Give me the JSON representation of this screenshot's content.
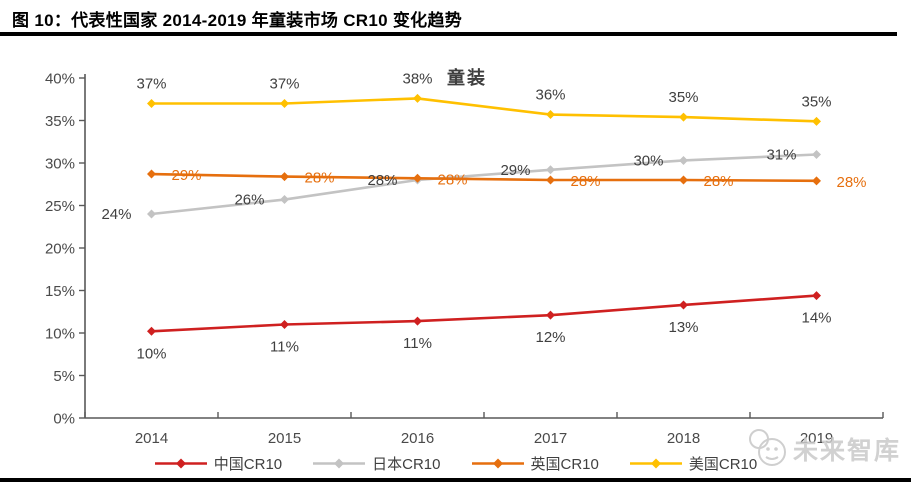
{
  "figure": {
    "title": "图 10：代表性国家 2014-2019 年童装市场 CR10 变化趋势"
  },
  "chart": {
    "inner_title": "童装"
  },
  "watermark": {
    "text": "未来智库"
  },
  "colors": {
    "china_red": "#CF2020",
    "japan_gray": "#C3C3C3",
    "uk_orange": "#E66F0E",
    "us_yellow": "#FFC000",
    "axis": "#595959",
    "tick_label": "#4a4a4a",
    "data_label": "#404040"
  },
  "chart_data": {
    "type": "line",
    "title": "童装",
    "xlabel": "",
    "ylabel": "",
    "x": [
      "2014",
      "2015",
      "2016",
      "2017",
      "2018",
      "2019"
    ],
    "ylim": [
      0,
      40
    ],
    "ytick_step": 5,
    "yticks": [
      "0%",
      "5%",
      "10%",
      "15%",
      "20%",
      "25%",
      "30%",
      "35%",
      "40%"
    ],
    "grid": false,
    "legend_position": "bottom",
    "series": [
      {
        "name": "中国CR10",
        "color": "#CF2020",
        "label_color": "#404040",
        "label_position": "below",
        "values": [
          10.2,
          11.0,
          11.4,
          12.1,
          13.3,
          14.4
        ],
        "labels": [
          "10%",
          "11%",
          "11%",
          "12%",
          "13%",
          "14%"
        ]
      },
      {
        "name": "日本CR10",
        "color": "#C3C3C3",
        "label_color": "#404040",
        "label_position": "left",
        "values": [
          24.0,
          25.7,
          28.0,
          29.2,
          30.3,
          31.0
        ],
        "labels": [
          "24%",
          "26%",
          "28%",
          "29%",
          "30%",
          "31%"
        ]
      },
      {
        "name": "英国CR10",
        "color": "#E66F0E",
        "label_color": "#E66F0E",
        "label_position": "right",
        "values": [
          28.7,
          28.4,
          28.2,
          28.0,
          28.0,
          27.9
        ],
        "labels": [
          "29%",
          "28%",
          "28%",
          "28%",
          "28%",
          "28%"
        ]
      },
      {
        "name": "美国CR10",
        "color": "#FFC000",
        "label_color": "#404040",
        "label_position": "above",
        "values": [
          37.0,
          37.0,
          37.6,
          35.7,
          35.4,
          34.9
        ],
        "labels": [
          "37%",
          "37%",
          "38%",
          "36%",
          "35%",
          "35%"
        ]
      }
    ]
  }
}
